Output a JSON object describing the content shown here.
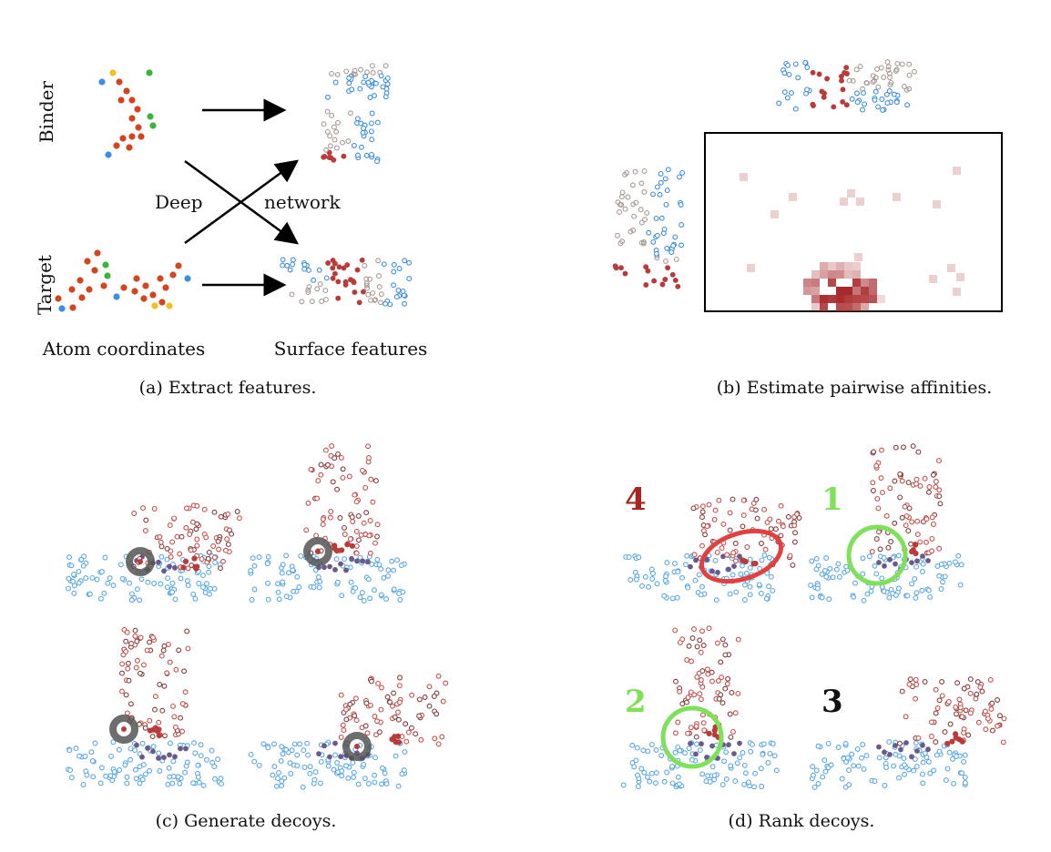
{
  "panel_a": {
    "caption": "(a) Extract features.",
    "binder_label": "Binder",
    "target_label": "Target",
    "deep_label": "Deep",
    "network_label": "network",
    "atom_label": "Atom coordinates",
    "surface_label": "Surface features"
  },
  "panel_b": {
    "caption": "(b) Estimate pairwise affinities."
  },
  "panel_c": {
    "caption": "(c) Generate decoys."
  },
  "panel_d": {
    "caption": "(d) Rank decoys.",
    "rank_tl": "4",
    "rank_tr": "1",
    "rank_bl": "2",
    "rank_br": "3"
  },
  "colors": {
    "atom_red": "#d2451e",
    "atom_green": "#3cb43c",
    "atom_blue": "#3c8ee0",
    "atom_yellow": "#f0c020",
    "surface_blue": "#5aa8e6",
    "surface_red": "#b93c3c",
    "highlight_green": "#7fe05a",
    "highlight_red": "#e04040",
    "rank_red": "#a8251e",
    "heat": "#a8282a"
  }
}
